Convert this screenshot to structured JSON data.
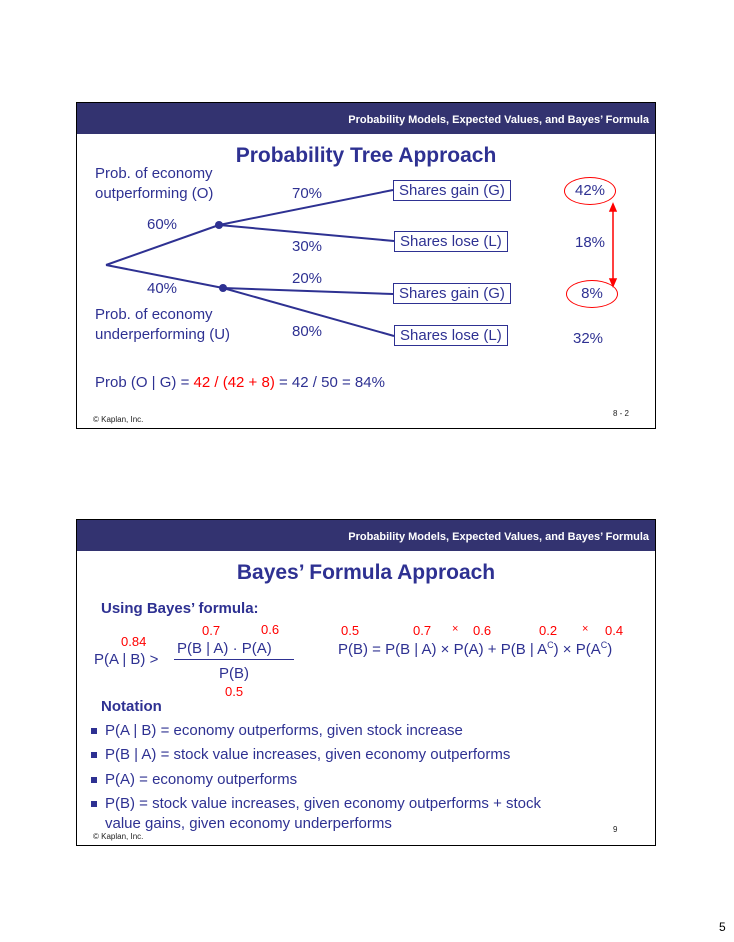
{
  "header": "Probability Models, Expected Values, and Bayes’ Formula",
  "copyright": "© Kaplan, Inc.",
  "slide1": {
    "title": "Probability Tree Approach",
    "o_label": [
      "Prob. of economy",
      "outperforming (O)"
    ],
    "u_label": [
      "Prob. of economy",
      "underperforming (U)"
    ],
    "p_o": "60%",
    "p_u": "40%",
    "p_go": "70%",
    "p_lo": "30%",
    "p_gu": "20%",
    "p_lu": "80%",
    "boxes": [
      "Shares gain (G)",
      "Shares lose (L)",
      "Shares gain (G)",
      "Shares lose (L)"
    ],
    "joint": [
      "42%",
      "18%",
      "8%",
      "32%"
    ],
    "formula_a": "Prob (O | G) = ",
    "formula_b": "42 / (42 + 8)",
    "formula_c": " = 42 / 50 = 84%",
    "slide_num": "8 - 2"
  },
  "slide2": {
    "title": "Bayes’ Formula Approach",
    "subtitle": "Using Bayes’ formula:",
    "lhs": "P(A | B) >",
    "lhs_val": "0.84",
    "numerator": "P(B | A) · P(A)",
    "num_vals": [
      "0.7",
      "0.6"
    ],
    "denominator": "P(B)",
    "den_val": "0.5",
    "pb_eq": "P(B) = P(B | A) × P(A) + P(B | A",
    "pb_eq2": ") × P(A",
    "pb_eq3": ")",
    "sup": "C",
    "pb_vals": [
      "0.5",
      "0.7",
      "×",
      "0.6",
      "0.2",
      "×",
      "0.4"
    ],
    "notation_title": "Notation",
    "notation": [
      "P(A | B) =  economy outperforms, given stock increase",
      "P(B | A) =  stock value increases, given economy outperforms",
      "P(A) = economy outperforms",
      "P(B) = stock value increases, given economy outperforms + stock"
    ],
    "notation_cont": "value gains, given economy underperforms",
    "slide_num": "9"
  },
  "page_number": "5",
  "colors": {
    "header": "#333370",
    "text": "#2e3192",
    "highlight": "#ff0000"
  }
}
